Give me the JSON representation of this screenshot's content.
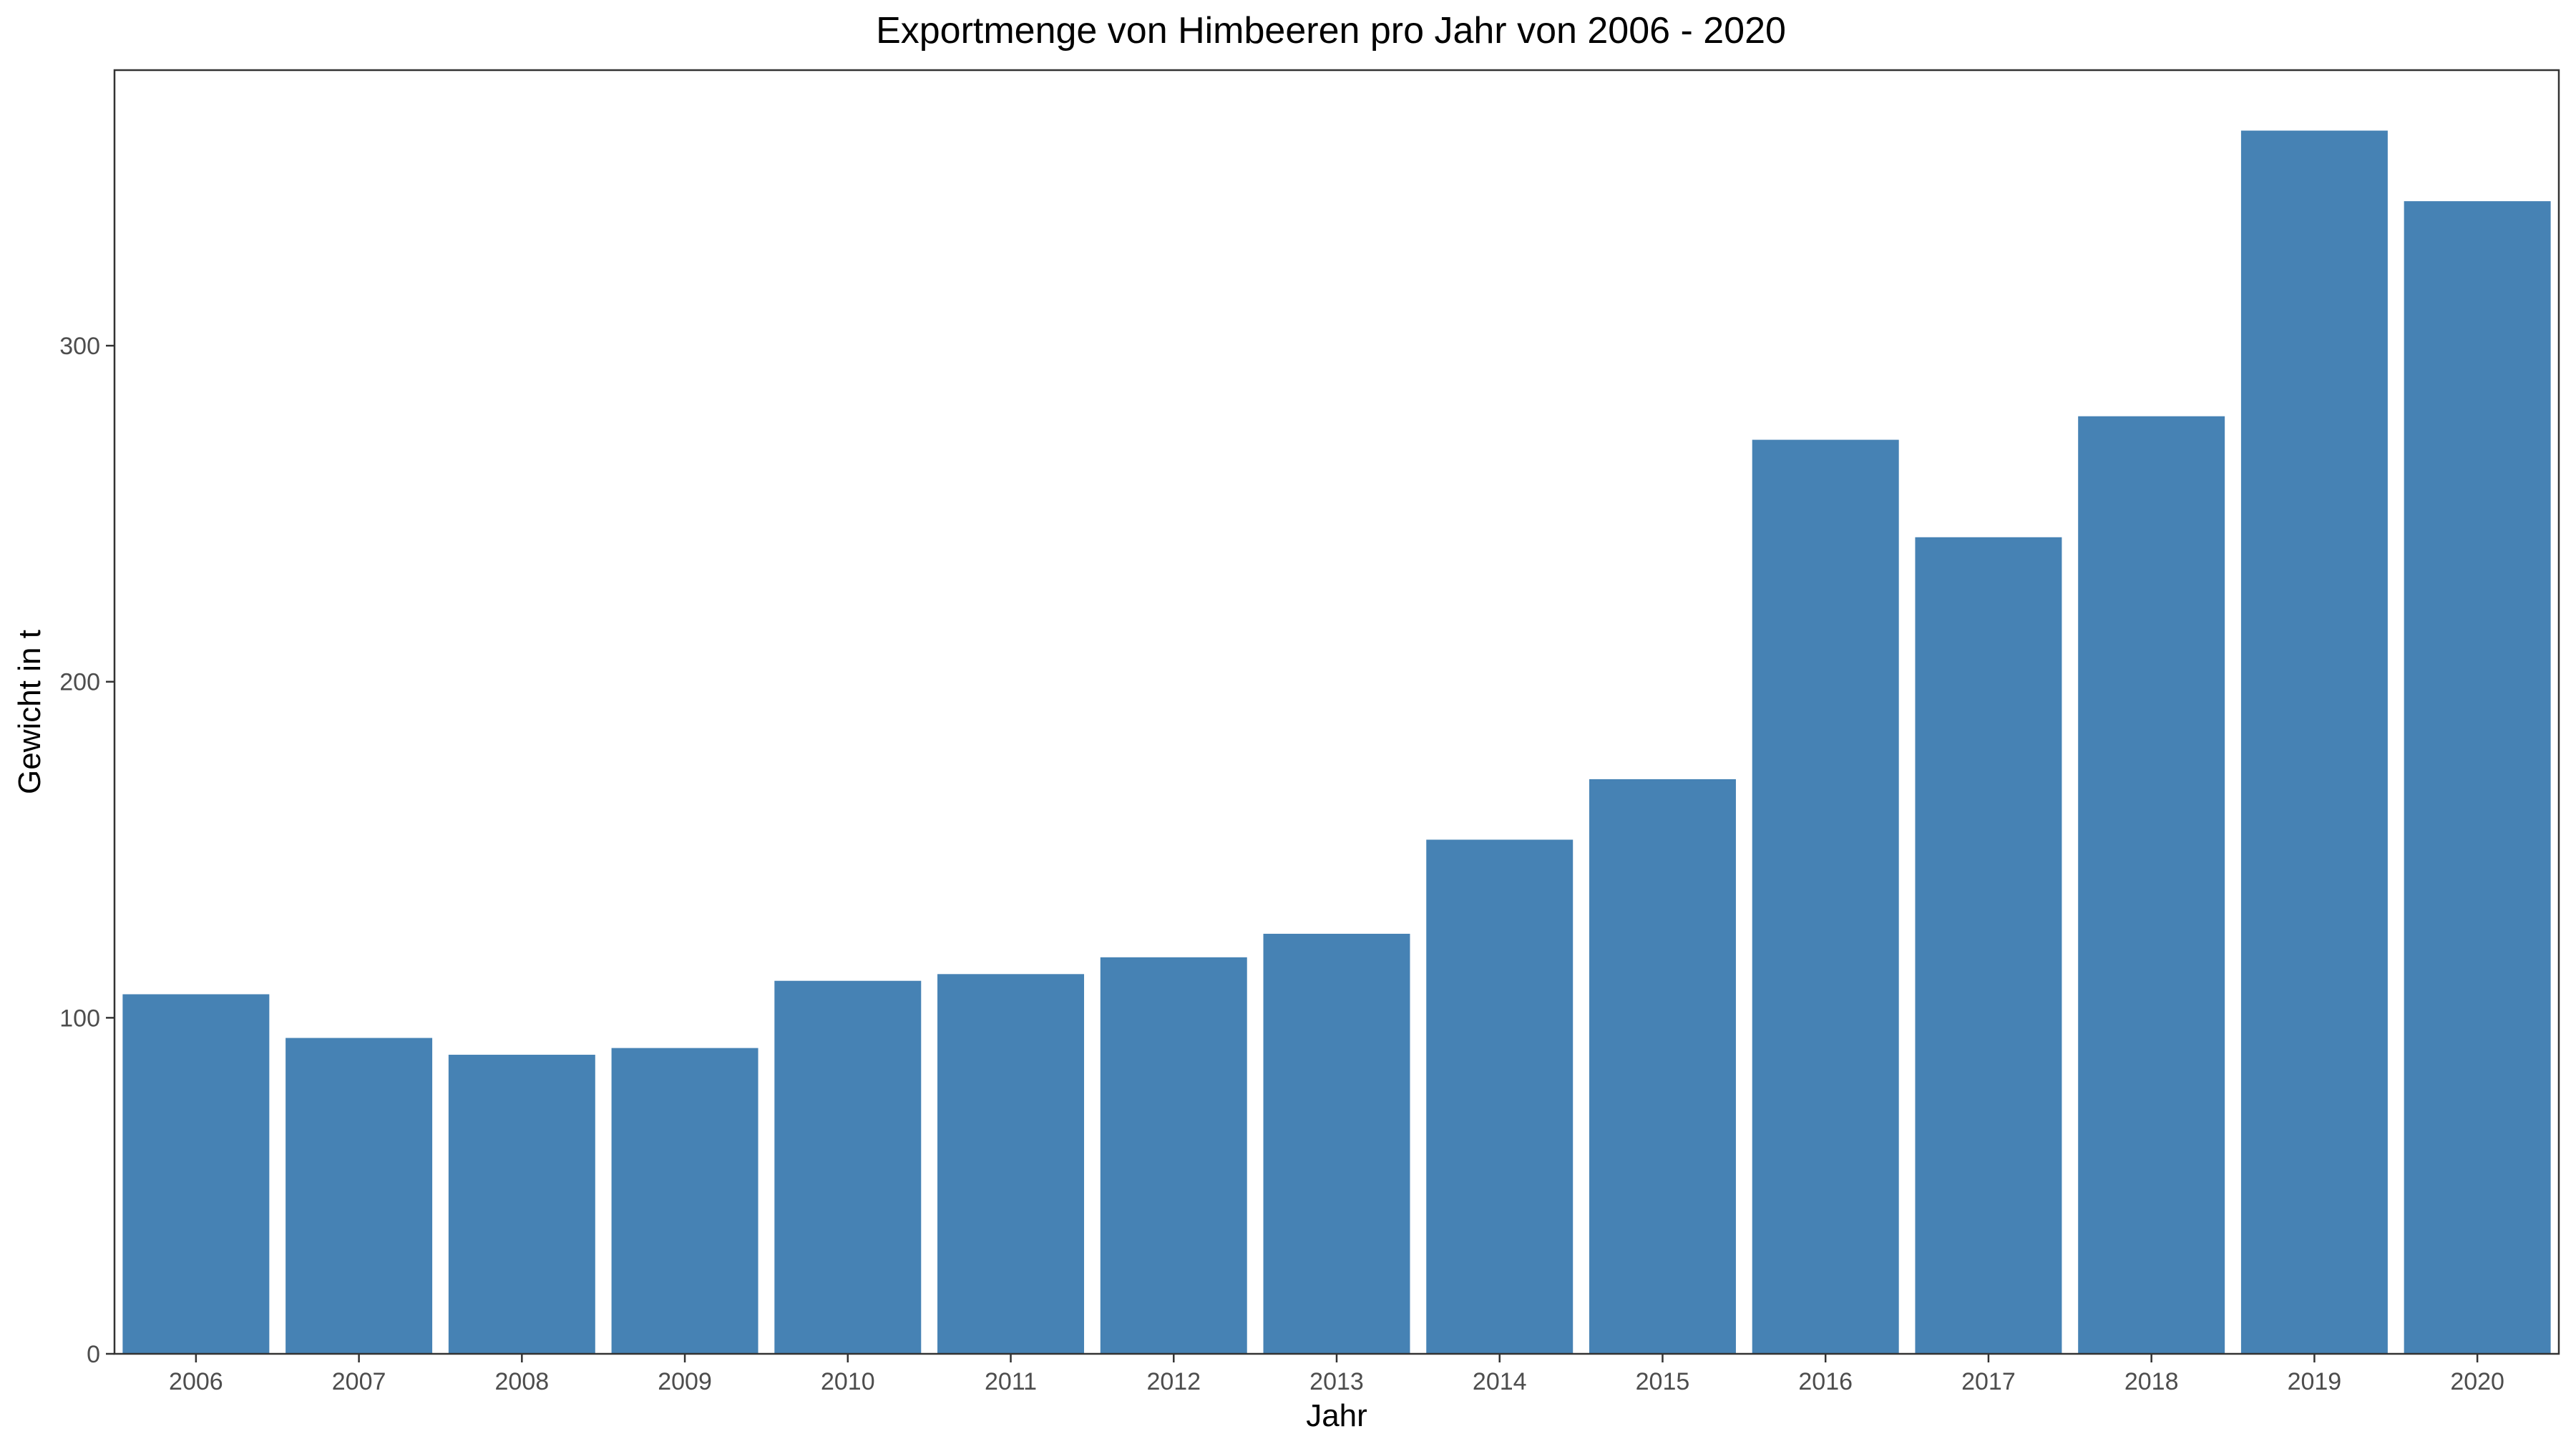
{
  "chart_data": {
    "type": "bar",
    "title": "Exportmenge von Himbeeren pro Jahr von 2006 - 2020",
    "xlabel": "Jahr",
    "ylabel": "Gewicht in t",
    "categories": [
      "2006",
      "2007",
      "2008",
      "2009",
      "2010",
      "2011",
      "2012",
      "2013",
      "2014",
      "2015",
      "2016",
      "2017",
      "2018",
      "2019",
      "2020"
    ],
    "values": [
      107,
      94,
      89,
      91,
      111,
      113,
      118,
      125,
      153,
      171,
      272,
      243,
      279,
      364,
      343
    ],
    "yticks": [
      0,
      100,
      200,
      300
    ],
    "ylim": [
      0,
      382
    ],
    "grid": false,
    "legend": "none",
    "bar_color": "#4682b4"
  }
}
